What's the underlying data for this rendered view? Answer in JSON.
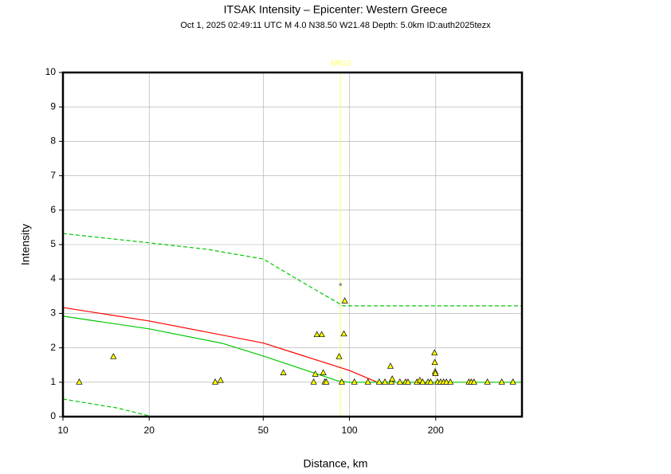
{
  "chart_data": {
    "type": "scatter",
    "title": "ITSAK Intensity –  Epicenter: Western Greece",
    "subtitle": "Oct  1, 2025 02:49:11 UTC   M 4.0   N38.50 W21.48   Depth: 5.0km   ID:auth2025tezx",
    "x_label": "Distance, km",
    "y_label": "Intensity",
    "xscale": "log",
    "xlim": [
      10,
      400
    ],
    "ylim": [
      0,
      10
    ],
    "xticks": [
      10,
      20,
      50,
      100,
      200
    ],
    "yticks": [
      0,
      1,
      2,
      3,
      4,
      5,
      6,
      7,
      8,
      9,
      10
    ],
    "grid": true,
    "series": [
      {
        "style": "solid",
        "color": "#ff0000",
        "x": [
          10,
          20,
          50,
          100,
          125
        ],
        "values": [
          3.17,
          2.78,
          2.14,
          1.34,
          1.0
        ]
      },
      {
        "style": "solid",
        "color": "#00c800",
        "x": [
          10,
          20,
          36,
          50,
          91,
          100,
          400
        ],
        "values": [
          2.92,
          2.55,
          2.13,
          1.76,
          1.04,
          1.0,
          1.0
        ]
      },
      {
        "style": "dashed",
        "color": "#00c800",
        "x": [
          10,
          20,
          32,
          50,
          69,
          95,
          400
        ],
        "values": [
          5.32,
          5.05,
          4.86,
          4.58,
          3.89,
          3.22,
          3.22
        ]
      },
      {
        "style": "dashed",
        "color": "#00c800",
        "x": [
          10,
          15.5,
          20
        ],
        "values": [
          0.51,
          0.25,
          0.02
        ]
      },
      {
        "style": "triangle",
        "color": "#ffff00",
        "x": [
          11.4,
          15,
          34,
          35.5,
          58.8,
          75,
          76,
          77,
          80,
          81,
          82,
          83,
          92,
          94,
          95.6,
          96.3,
          104,
          116,
          127,
          133,
          139,
          140,
          141,
          150,
          157,
          160,
          172,
          176,
          180,
          188,
          192,
          198,
          198.5,
          199,
          199.5,
          203,
          208,
          213,
          218,
          225,
          261,
          266,
          272,
          303,
          340,
          372
        ],
        "values": [
          1.0,
          1.74,
          1.0,
          1.05,
          1.27,
          1.0,
          1.23,
          2.38,
          2.38,
          1.27,
          1.0,
          1.0,
          1.74,
          1.0,
          2.4,
          3.36,
          1.0,
          1.0,
          1.0,
          1.0,
          1.46,
          1.0,
          1.09,
          1.0,
          1.0,
          1.0,
          1.0,
          1.05,
          1.0,
          1.0,
          1.0,
          1.85,
          1.57,
          1.3,
          1.25,
          1.0,
          1.0,
          1.0,
          1.0,
          1.0,
          1.0,
          1.0,
          1.0,
          1.0,
          1.0,
          1.0
        ]
      }
    ],
    "annotation": {
      "text": "ARG2",
      "x": 93,
      "color": "#ffff66"
    },
    "marker": {
      "x": 93,
      "y": 3.84,
      "color": "#888888"
    }
  }
}
